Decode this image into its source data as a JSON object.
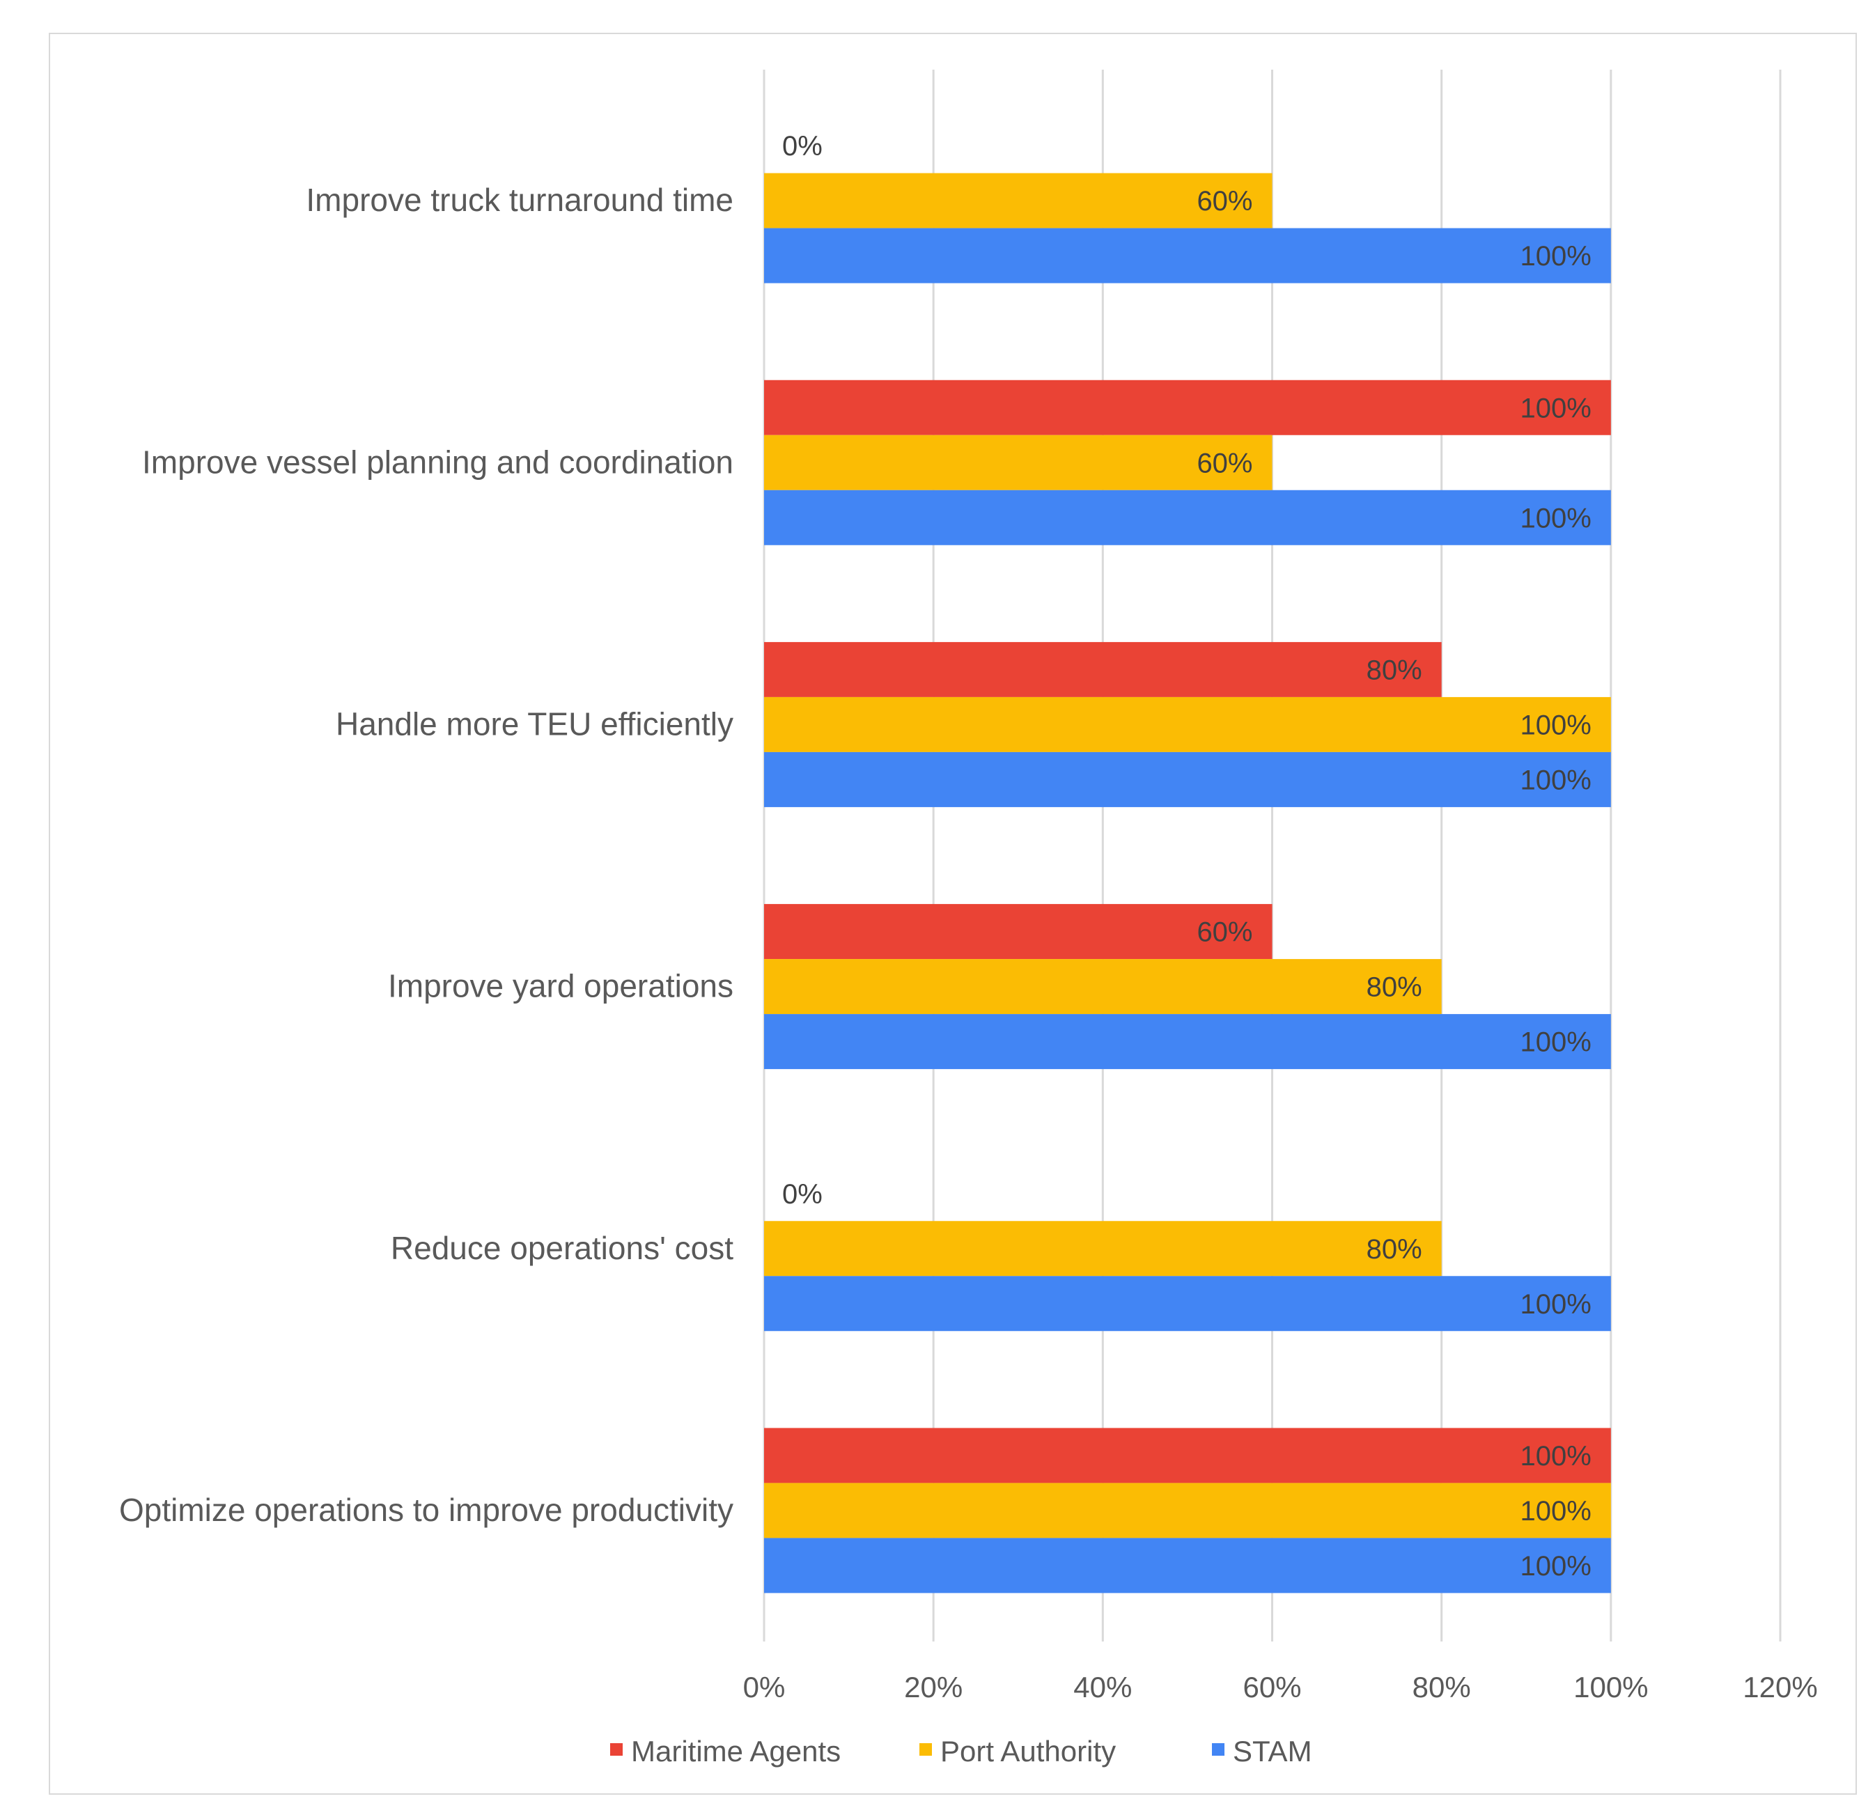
{
  "chart_data": {
    "type": "bar",
    "orientation": "horizontal",
    "categories": [
      "Improve truck turnaround time",
      "Improve vessel planning and coordination",
      "Handle more TEU efficiently",
      "Improve yard operations",
      "Reduce operations' cost",
      "Optimize operations to improve productivity"
    ],
    "series": [
      {
        "name": "Maritime Agents",
        "color": "#ea4335",
        "values": [
          0,
          100,
          80,
          60,
          0,
          100
        ]
      },
      {
        "name": "Port Authority",
        "color": "#fbbc04",
        "values": [
          60,
          60,
          100,
          80,
          80,
          100
        ]
      },
      {
        "name": "STAM",
        "color": "#4285f4",
        "values": [
          100,
          100,
          100,
          100,
          100,
          100
        ]
      }
    ],
    "xlim": [
      0,
      120
    ],
    "xticks": [
      0,
      20,
      40,
      60,
      80,
      100,
      120
    ],
    "tick_suffix": "%",
    "grid": true,
    "legend_position": "bottom",
    "title": "",
    "xlabel": "",
    "ylabel": ""
  }
}
